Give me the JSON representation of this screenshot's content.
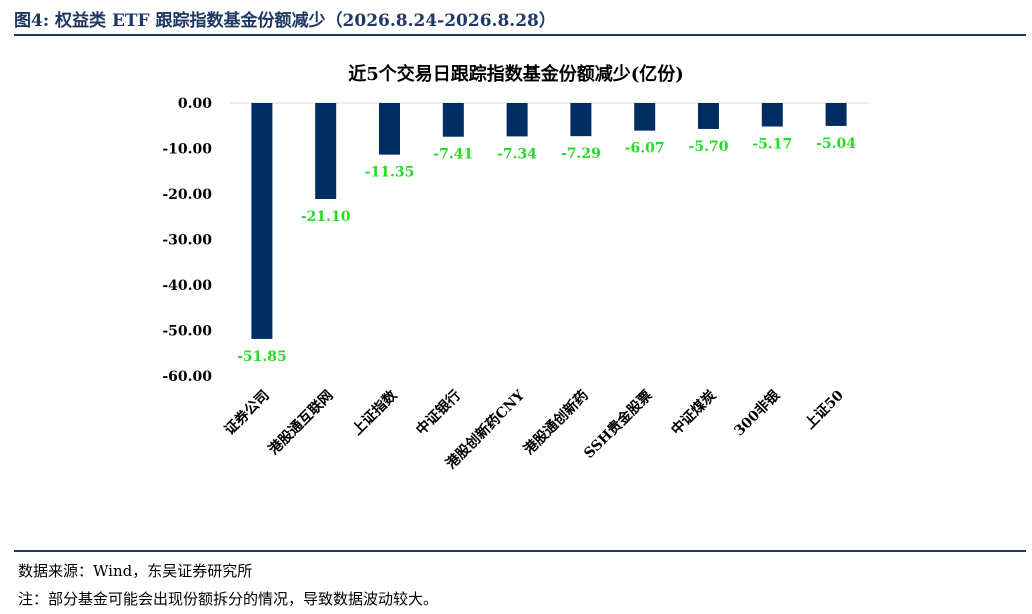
{
  "header": {
    "figure_title": "图4:  权益类 ETF 跟踪指数基金份额减少（2026.8.24-2026.8.28）"
  },
  "footer": {
    "source": "数据来源：Wind，东吴证券研究所",
    "note": "注：部分基金可能会出现份额拆分的情况，导致数据波动较大。"
  },
  "colors": {
    "bar": "#002d62",
    "label": "#22dd22",
    "title_rule": "#1f3864"
  },
  "chart_data": {
    "type": "bar",
    "title": "近5个交易日跟踪指数基金份额减少(亿份)",
    "categories": [
      "证券公司",
      "港股通互联网",
      "上证指数",
      "中证银行",
      "港股创新药CNY",
      "港股通创新药",
      "SSH贵金股票",
      "中证煤炭",
      "300非银",
      "上证50"
    ],
    "values": [
      -51.85,
      -21.1,
      -11.35,
      -7.41,
      -7.34,
      -7.29,
      -6.07,
      -5.7,
      -5.17,
      -5.04
    ],
    "value_labels": [
      "-51.85",
      "-21.10",
      "-11.35",
      "-7.41",
      "-7.34",
      "-7.29",
      "-6.07",
      "-5.70",
      "-5.17",
      "-5.04"
    ],
    "y_ticks": [
      "0.00",
      "-10.00",
      "-20.00",
      "-30.00",
      "-40.00",
      "-50.00",
      "-60.00"
    ],
    "ylim": [
      -60,
      0
    ],
    "grid": false,
    "legend": "none"
  }
}
